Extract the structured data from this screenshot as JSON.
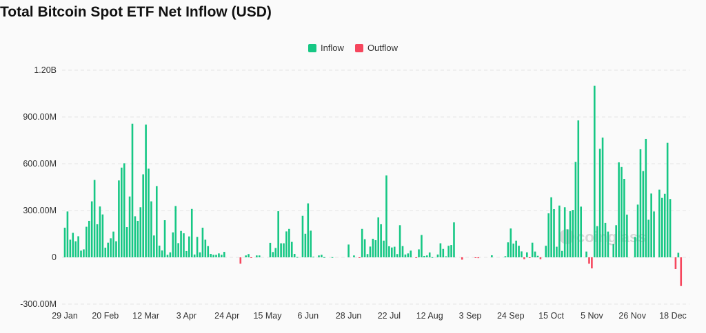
{
  "chart_data": {
    "type": "bar",
    "title": "Total Bitcoin Spot ETF Net Inflow (USD)",
    "xlabel": "",
    "ylabel": "",
    "unit": "USD (millions)",
    "ylim": [
      -300,
      1200
    ],
    "grid": true,
    "legend_position": "top-center",
    "legend": [
      {
        "name": "Inflow",
        "color": "#16c784"
      },
      {
        "name": "Outflow",
        "color": "#f6465d"
      }
    ],
    "y_ticks": [
      {
        "value": 1200,
        "label": "1.20B"
      },
      {
        "value": 900,
        "label": "900.00M"
      },
      {
        "value": 600,
        "label": "600.00M"
      },
      {
        "value": 300,
        "label": "300.00M"
      },
      {
        "value": 0,
        "label": "0"
      },
      {
        "value": -300,
        "label": "-300.00M"
      }
    ],
    "x_ticks": [
      {
        "index": 0,
        "label": "29 Jan"
      },
      {
        "index": 15,
        "label": "20 Feb"
      },
      {
        "index": 30,
        "label": "12 Mar"
      },
      {
        "index": 45,
        "label": "3 Apr"
      },
      {
        "index": 60,
        "label": "24 Apr"
      },
      {
        "index": 75,
        "label": "15 May"
      },
      {
        "index": 90,
        "label": "6 Jun"
      },
      {
        "index": 105,
        "label": "28 Jun"
      },
      {
        "index": 120,
        "label": "22 Jul"
      },
      {
        "index": 135,
        "label": "12 Aug"
      },
      {
        "index": 150,
        "label": "3 Sep"
      },
      {
        "index": 165,
        "label": "24 Sep"
      },
      {
        "index": 180,
        "label": "15 Oct"
      },
      {
        "index": 195,
        "label": "5 Nov"
      },
      {
        "index": 210,
        "label": "26 Nov"
      },
      {
        "index": 225,
        "label": "18 Dec"
      }
    ],
    "values": [
      190,
      294,
      113,
      157,
      103,
      135,
      43,
      51,
      196,
      234,
      359,
      496,
      212,
      326,
      275,
      62,
      94,
      122,
      165,
      103,
      493,
      575,
      603,
      194,
      390,
      857,
      263,
      234,
      321,
      532,
      851,
      569,
      359,
      140,
      457,
      75,
      44,
      238,
      16,
      32,
      160,
      329,
      91,
      169,
      154,
      40,
      134,
      310,
      18,
      131,
      32,
      190,
      113,
      72,
      22,
      16,
      16,
      25,
      16,
      35,
      0,
      0,
      0,
      0,
      0,
      -41,
      0,
      12,
      21,
      -3,
      0,
      12,
      12,
      0,
      0,
      0,
      93,
      34,
      60,
      296,
      90,
      90,
      166,
      182,
      99,
      22,
      2,
      0,
      266,
      151,
      346,
      171,
      4,
      0,
      12,
      16,
      1,
      0,
      0,
      1,
      0,
      0,
      0,
      0,
      0,
      82,
      0,
      12,
      0,
      -2,
      182,
      116,
      21,
      69,
      119,
      110,
      256,
      212,
      107,
      525,
      71,
      63,
      68,
      21,
      206,
      72,
      18,
      25,
      43,
      0,
      -2,
      51,
      143,
      9,
      12,
      31,
      1,
      0,
      18,
      90,
      54,
      6,
      74,
      79,
      224,
      0,
      0,
      -15,
      0,
      0,
      0,
      0,
      -3,
      -5,
      0,
      0,
      0,
      0,
      13,
      0,
      0,
      0,
      0,
      7,
      96,
      185,
      88,
      107,
      74,
      38,
      -12,
      32,
      -2,
      94,
      37,
      10,
      -12,
      0,
      74,
      282,
      385,
      309,
      68,
      332,
      41,
      321,
      179,
      296,
      304,
      612,
      878,
      325,
      0,
      37,
      -41,
      -71,
      1100,
      200,
      696,
      768,
      221,
      165,
      0,
      84,
      206,
      609,
      579,
      503,
      274,
      0,
      0,
      131,
      338,
      693,
      553,
      759,
      241,
      409,
      294,
      0,
      434,
      381,
      407,
      734,
      374,
      0,
      -75,
      29,
      -184
    ]
  },
  "watermark": "coinglass"
}
